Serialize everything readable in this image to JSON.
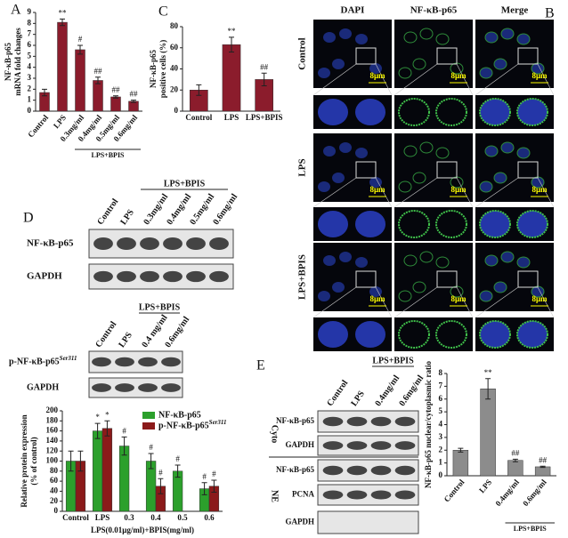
{
  "panels": {
    "a": "A",
    "b": "B",
    "c": "C",
    "d": "D",
    "e": "E"
  },
  "chart_data": [
    {
      "type": "bar",
      "ylabel": [
        "NF-κB-p65",
        "mRNA fold changes"
      ],
      "categories": [
        "Control",
        "LPS",
        "0.3mg/ml",
        "0.4mg/ml",
        "0.5mg/ml",
        "0.6mg/ml"
      ],
      "values": [
        1.7,
        8.1,
        5.6,
        2.8,
        1.3,
        0.9
      ],
      "errors": [
        0.3,
        0.3,
        0.4,
        0.3,
        0.1,
        0.1
      ],
      "annotations": [
        null,
        "**",
        "#",
        "##",
        "##",
        "##"
      ],
      "group_label": "LPS+BPIS",
      "color": "#8b1c2c",
      "ylim": [
        0,
        9
      ],
      "yticks": [
        0,
        1,
        2,
        3,
        4,
        5,
        6,
        7,
        8,
        9
      ]
    },
    {
      "type": "bar",
      "ylabel": [
        "NF-κB-p65",
        "positive cells (%)"
      ],
      "categories": [
        "Control",
        "LPS",
        "LPS+BPIS"
      ],
      "values": [
        20,
        63,
        30
      ],
      "errors": [
        5,
        7,
        6
      ],
      "annotations": [
        null,
        "**",
        "##"
      ],
      "color": "#8b1c2c",
      "ylim": [
        0,
        80
      ],
      "yticks": [
        0,
        20,
        40,
        60,
        80
      ]
    },
    {
      "type": "bar",
      "ylabel": [
        "Relative protein expression",
        "(% of control)"
      ],
      "xlabel": "LPS(0.01μg/ml)+BPIS(mg/ml)",
      "categories": [
        "Control",
        "LPS",
        "0.3",
        "0.4",
        "0.5",
        "0.6"
      ],
      "series": [
        {
          "name": "NF-κB-p65",
          "color": "#2ca02c",
          "values": [
            100,
            160,
            130,
            100,
            80,
            45
          ],
          "errors": [
            20,
            15,
            18,
            15,
            12,
            12
          ],
          "annotations": [
            null,
            "*",
            "#",
            "#",
            "#",
            "#"
          ]
        },
        {
          "name": "p-NF-κB-p65",
          "name_sup": "Ser311",
          "color": "#8b1a1a",
          "values": [
            100,
            165,
            null,
            50,
            null,
            50
          ],
          "errors": [
            20,
            15,
            null,
            15,
            null,
            12
          ],
          "annotations": [
            null,
            "*",
            null,
            "#",
            null,
            "#"
          ]
        }
      ],
      "legend": "upper right",
      "ylim": [
        0,
        200
      ],
      "yticks": [
        0,
        20,
        40,
        60,
        80,
        100,
        120,
        140,
        160,
        180,
        200
      ]
    },
    {
      "type": "bar",
      "ylabel": [
        "NF-κB-p65 nuclear/cytoplasmic ratio"
      ],
      "categories": [
        "Control",
        "LPS",
        "0.4mg/ml",
        "0.6mg/ml"
      ],
      "values": [
        2.0,
        6.8,
        1.2,
        0.7
      ],
      "errors": [
        0.15,
        0.8,
        0.1,
        0.05
      ],
      "annotations": [
        null,
        "**",
        "##",
        "##"
      ],
      "group_label": "LPS+BPIS",
      "color": "#8c8c8c",
      "ylim": [
        0,
        8
      ],
      "yticks": [
        0,
        1,
        2,
        3,
        4,
        5,
        6,
        7,
        8
      ]
    }
  ],
  "microscopy": {
    "columns": [
      "DAPI",
      "NF-κB-p65",
      "Merge"
    ],
    "rows": [
      "Control",
      "LPS",
      "LPS+BPIS"
    ],
    "scale_bar": "8μm"
  },
  "blot_d1": {
    "lanes": [
      "Control",
      "LPS",
      "0.3mg/ml",
      "0.4mg/ml",
      "0.5mg/ml",
      "0.6mg/ml"
    ],
    "group_label": "LPS+BPIS",
    "bands": [
      "NF-κB-p65",
      "GAPDH"
    ]
  },
  "blot_d2": {
    "lanes": [
      "Control",
      "LPS",
      "0.4 mg/ml",
      "0.6mg/ml"
    ],
    "group_label": "LPS+BPIS",
    "band_name": "p-NF-κB-p65",
    "band_sup": "Ser311",
    "bands": [
      "GAPDH"
    ]
  },
  "blot_e": {
    "lanes": [
      "Control",
      "LPS",
      "0.4mg/ml",
      "0.6mg/ml"
    ],
    "group_label": "LPS+BPIS",
    "fractions": [
      "Cyto",
      "NE"
    ],
    "bands": [
      "NF-κB-p65",
      "GAPDH",
      "NF-κB-p65",
      "PCNA",
      "GAPDH"
    ]
  }
}
